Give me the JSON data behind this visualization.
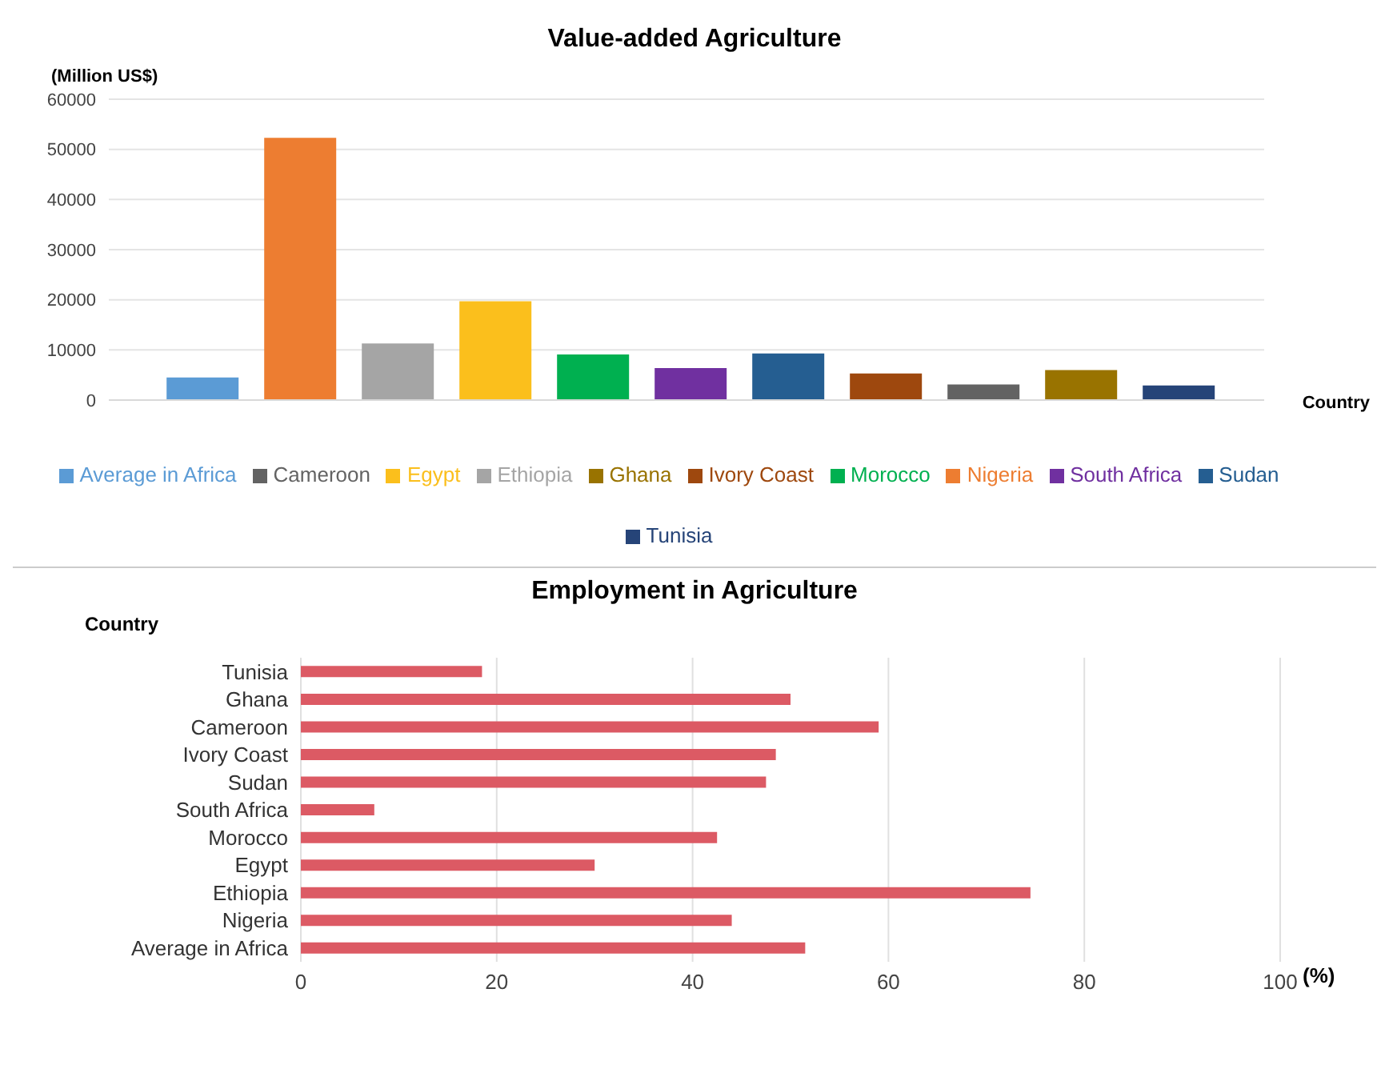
{
  "chart_data": [
    {
      "type": "bar",
      "title": "Value-added Agriculture",
      "ylabel": "(Million US$)",
      "xlabel": "Country",
      "categories": [
        null
      ],
      "series": [
        {
          "name": "Average in Africa",
          "color": "#5b9bd5",
          "values": [
            4500
          ]
        },
        {
          "name": "Nigeria",
          "color": "#ed7d31",
          "values": [
            52300
          ]
        },
        {
          "name": "Ethiopia",
          "color": "#a5a5a5",
          "values": [
            11300
          ]
        },
        {
          "name": "Egypt",
          "color": "#fbbf1c",
          "values": [
            19700
          ]
        },
        {
          "name": "Morocco",
          "color": "#00b050",
          "values": [
            9100
          ]
        },
        {
          "name": "South Africa",
          "color": "#7030a0",
          "values": [
            6400
          ]
        },
        {
          "name": "Sudan",
          "color": "#255e91",
          "values": [
            9300
          ]
        },
        {
          "name": "Ivory Coast",
          "color": "#9e480e",
          "values": [
            5300
          ]
        },
        {
          "name": "Cameroon",
          "color": "#636363",
          "values": [
            3100
          ]
        },
        {
          "name": "Ghana",
          "color": "#997300",
          "values": [
            6000
          ]
        },
        {
          "name": "Tunisia",
          "color": "#264478",
          "values": [
            2900
          ]
        }
      ],
      "ylim": [
        0,
        60000
      ],
      "yticks": [
        0,
        10000,
        20000,
        30000,
        40000,
        50000,
        60000
      ],
      "grid": "y",
      "legend": "bottom",
      "tick_labels": "y"
    },
    {
      "type": "bar",
      "orientation": "horizontal",
      "title": "Employment in Agriculture",
      "ylabel": "Country",
      "xlabel": "(%)",
      "categories": [
        "Tunisia",
        "Ghana",
        "Cameroon",
        "Ivory Coast",
        "Sudan",
        "South Africa",
        "Morocco",
        "Egypt",
        "Ethiopia",
        "Nigeria",
        "Average in Africa"
      ],
      "values": [
        18.5,
        50,
        59,
        48.5,
        47.5,
        7.5,
        42.5,
        30,
        74.5,
        44,
        51.5
      ],
      "color": "#dc5a64",
      "xlim": [
        0,
        100
      ],
      "xticks": [
        0,
        20,
        40,
        60,
        80,
        100
      ],
      "grid": "x"
    }
  ]
}
